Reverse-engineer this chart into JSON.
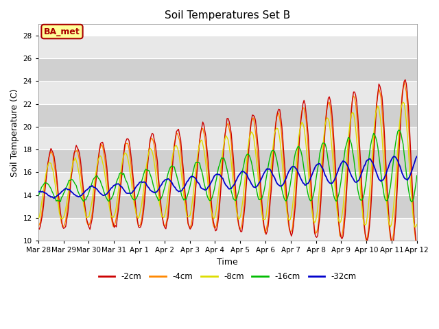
{
  "title": "Soil Temperatures Set B",
  "xlabel": "Time",
  "ylabel": "Soil Temperature (C)",
  "ylim": [
    10,
    29
  ],
  "yticks": [
    10,
    12,
    14,
    16,
    18,
    20,
    22,
    24,
    26,
    28
  ],
  "colors": {
    "-2cm": "#cc0000",
    "-4cm": "#ff8800",
    "-8cm": "#dddd00",
    "-16cm": "#00bb00",
    "-32cm": "#0000cc"
  },
  "annotation_text": "BA_met",
  "annotation_color": "#aa0000",
  "annotation_bg": "#ffff99",
  "annotation_border": "#aa0000",
  "bg_color": "#d8d8d8",
  "band_light": "#e8e8e8",
  "band_dark": "#d0d0d0",
  "x_tick_labels": [
    "Mar 28",
    "Mar 29",
    "Mar 30",
    "Mar 31",
    "Apr 1",
    "Apr 2",
    "Apr 3",
    "Apr 4",
    "Apr 5",
    "Apr 6",
    "Apr 7",
    "Apr 8",
    "Apr 9",
    "Apr 10",
    "Apr 11",
    "Apr 12"
  ],
  "line_width": 1.0,
  "figsize": [
    6.4,
    4.8
  ],
  "dpi": 100
}
